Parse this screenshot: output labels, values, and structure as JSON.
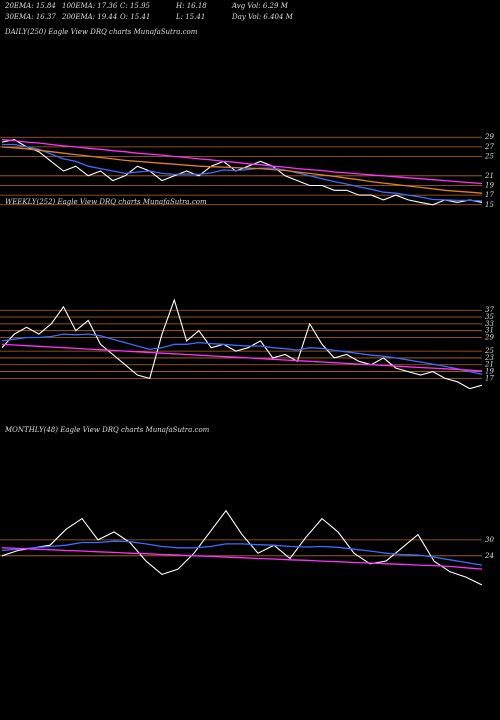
{
  "header": {
    "items": [
      "20EMA: 15.84",
      "100EMA: 17.36",
      "C: 15.95",
      "H: 16.18",
      "Avg Vol: 6.29 M",
      "30EMA: 16.37",
      "200EMA: 19.44",
      "O: 15.41",
      "L: 15.41",
      "Day Vol: 6.404 M"
    ]
  },
  "chart_data": [
    {
      "type": "line",
      "title": "DAILY(250) Eagle  View  DRQ charts MunafaSutra.com",
      "categories": [
        null,
        null,
        null,
        null,
        null,
        null,
        null,
        null,
        null,
        null,
        null,
        null,
        null,
        null,
        null,
        null,
        null,
        null,
        null,
        null,
        null,
        null,
        null,
        null,
        null,
        null,
        null,
        null,
        null,
        null,
        null,
        null,
        null,
        null,
        null,
        null,
        null,
        null,
        null,
        null
      ],
      "series": [
        {
          "color": "#ffffff",
          "values": [
            28,
            28.5,
            27,
            26,
            24,
            22,
            23,
            21,
            22,
            20,
            21,
            23,
            22,
            20,
            21,
            22,
            21,
            23,
            24,
            22,
            23,
            24,
            23,
            21,
            20,
            19,
            19,
            18,
            18,
            17,
            17,
            16,
            17,
            16,
            15.5,
            15,
            16,
            15.5,
            16,
            15.5
          ]
        },
        {
          "color": "#3a6cff",
          "values": [
            27.5,
            27.5,
            27,
            26.5,
            25.5,
            24.5,
            24,
            23,
            22.5,
            22,
            21.5,
            21.8,
            22,
            21.5,
            21.3,
            21.4,
            21.3,
            21.6,
            22.2,
            22.1,
            22.3,
            22.6,
            22.6,
            22.2,
            21.6,
            21,
            20.4,
            19.8,
            19.3,
            18.7,
            18.2,
            17.6,
            17.4,
            17,
            16.6,
            16.1,
            16,
            15.9,
            15.9,
            15.8
          ]
        },
        {
          "color": "#e08020",
          "values": [
            27,
            26.8,
            26.6,
            26.3,
            26,
            25.7,
            25.4,
            25.1,
            24.8,
            24.5,
            24.2,
            24,
            23.8,
            23.6,
            23.4,
            23.2,
            23,
            22.9,
            22.8,
            22.7,
            22.6,
            22.5,
            22.3,
            22.1,
            21.8,
            21.5,
            21.2,
            20.9,
            20.5,
            20.2,
            19.8,
            19.5,
            19.2,
            18.9,
            18.6,
            18.3,
            18,
            17.8,
            17.6,
            17.4
          ]
        },
        {
          "color": "#ff30ff",
          "values": [
            28.5,
            28.3,
            28,
            27.8,
            27.5,
            27.2,
            27,
            26.7,
            26.5,
            26.2,
            26,
            25.7,
            25.5,
            25.3,
            25,
            24.8,
            24.5,
            24.3,
            24,
            23.8,
            23.5,
            23.3,
            23,
            22.8,
            22.5,
            22.3,
            22.1,
            21.8,
            21.6,
            21.4,
            21.2,
            21,
            20.8,
            20.6,
            20.4,
            20.2,
            20,
            19.8,
            19.6,
            19.4
          ]
        }
      ],
      "ylim": [
        13.5,
        30.5
      ],
      "yticks": [
        29,
        27,
        25,
        21,
        19,
        17,
        15
      ],
      "grid": true,
      "grid_color": "#b86a1e"
    },
    {
      "type": "line",
      "title": "WEEKLY(252) Eagle  View  DRQ charts MunafaSutra.com",
      "categories": [
        null,
        null,
        null,
        null,
        null,
        null,
        null,
        null,
        null,
        null,
        null,
        null,
        null,
        null,
        null,
        null,
        null,
        null,
        null,
        null,
        null,
        null,
        null,
        null,
        null,
        null,
        null,
        null,
        null,
        null,
        null,
        null,
        null,
        null,
        null,
        null,
        null,
        null,
        null,
        null
      ],
      "series": [
        {
          "color": "#ffffff",
          "values": [
            26,
            30,
            32,
            30,
            33,
            38,
            31,
            34,
            27,
            24,
            21,
            18,
            17,
            30,
            40,
            28,
            31,
            26,
            27,
            25,
            26,
            28,
            23,
            24,
            22,
            33,
            27,
            23,
            24,
            22,
            21,
            23,
            20,
            19,
            18,
            19,
            17,
            16,
            14,
            15
          ]
        },
        {
          "color": "#3a6cff",
          "values": [
            28,
            28.5,
            29,
            29,
            29.3,
            30,
            29.8,
            30,
            29.5,
            28.5,
            27.5,
            26.5,
            25.5,
            26,
            27,
            27,
            27.5,
            27.2,
            27,
            26.7,
            26.5,
            26.5,
            26,
            25.7,
            25.3,
            26,
            25.8,
            25.2,
            24.8,
            24.3,
            23.8,
            23.5,
            23,
            22.4,
            21.8,
            21.2,
            20.5,
            19.8,
            19,
            18.2
          ]
        },
        {
          "color": "#ff30ff",
          "values": [
            27,
            26.8,
            26.6,
            26.4,
            26.2,
            26,
            25.8,
            25.6,
            25.4,
            25.2,
            25,
            24.8,
            24.6,
            24.4,
            24.2,
            24,
            23.8,
            23.6,
            23.4,
            23.2,
            23,
            22.8,
            22.6,
            22.4,
            22.2,
            22,
            21.8,
            21.6,
            21.4,
            21.2,
            21,
            20.8,
            20.6,
            20.4,
            20.2,
            20,
            19.8,
            19.6,
            19.4,
            19.2
          ]
        }
      ],
      "ylim": [
        13,
        40
      ],
      "yticks": [
        37,
        35,
        33,
        31,
        29,
        25,
        23,
        21,
        19,
        17
      ],
      "grid": true,
      "grid_color": "#b86a1e"
    },
    {
      "type": "line",
      "title": "MONTHLY(48) Eagle  View  DRQ charts MunafaSutra.com",
      "categories": [
        null,
        null,
        null,
        null,
        null,
        null,
        null,
        null,
        null,
        null,
        null,
        null,
        null,
        null,
        null,
        null,
        null,
        null,
        null,
        null,
        null,
        null,
        null,
        null,
        null,
        null,
        null,
        null,
        null,
        null,
        null
      ],
      "series": [
        {
          "color": "#ffffff",
          "values": [
            24,
            26,
            27,
            28,
            34,
            38,
            30,
            33,
            29,
            22,
            17,
            19,
            25,
            33,
            41,
            32,
            25,
            28,
            23,
            31,
            38,
            33,
            25,
            21,
            22,
            27,
            32,
            22,
            18,
            16,
            13
          ]
        },
        {
          "color": "#3a6cff",
          "values": [
            26,
            26.5,
            27,
            27.5,
            28,
            29,
            29,
            29.5,
            29.3,
            28.5,
            27.5,
            27,
            27,
            27.5,
            28.5,
            28.5,
            28.2,
            28,
            27.5,
            27.3,
            27.5,
            27.2,
            26.5,
            25.8,
            25,
            24.5,
            24.3,
            23.5,
            22.5,
            21.5,
            20.5
          ]
        },
        {
          "color": "#ff30ff",
          "values": [
            27,
            26.8,
            26.5,
            26.3,
            26,
            25.8,
            25.5,
            25.3,
            25,
            24.8,
            24.5,
            24.3,
            24,
            23.8,
            23.5,
            23.3,
            23,
            22.8,
            22.5,
            22.3,
            22,
            21.8,
            21.5,
            21.3,
            21,
            20.8,
            20.5,
            20.3,
            20,
            19.5,
            19
          ]
        }
      ],
      "ylim": [
        10,
        42
      ],
      "yticks": [
        30,
        24
      ],
      "grid": true,
      "grid_color": "#b86a1e"
    }
  ]
}
